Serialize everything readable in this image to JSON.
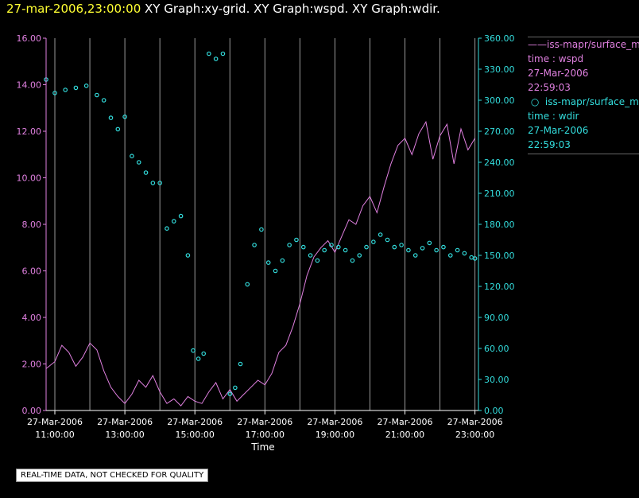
{
  "header": {
    "date": "27-mar-2006,23:00:00",
    "title": "XY Graph:xy-grid.  XY Graph:wspd.  XY Graph:wdir."
  },
  "legend": {
    "wspd": {
      "name": "iss-mapr/surface_met",
      "var": "time : wspd",
      "date": "27-Mar-2006",
      "time": "22:59:03",
      "color": "#e080e0"
    },
    "wdir": {
      "name": "iss-mapr/surface_met",
      "var": "time : wdir",
      "date": "27-Mar-2006",
      "time": "22:59:03",
      "color": "#33dddd"
    }
  },
  "quality_note": "REAL-TIME DATA, NOT CHECKED FOR QUALITY",
  "chart_data": {
    "type": "line",
    "xlabel": "Time",
    "xlim_hours": [
      10.75,
      23.1
    ],
    "x_ticks": [
      {
        "hour": 11,
        "date": "27-Mar-2006",
        "time": "11:00:00"
      },
      {
        "hour": 13,
        "date": "27-Mar-2006",
        "time": "13:00:00"
      },
      {
        "hour": 15,
        "date": "27-Mar-2006",
        "time": "15:00:00"
      },
      {
        "hour": 17,
        "date": "27-Mar-2006",
        "time": "17:00:00"
      },
      {
        "hour": 19,
        "date": "27-Mar-2006",
        "time": "19:00:00"
      },
      {
        "hour": 21,
        "date": "27-Mar-2006",
        "time": "21:00:00"
      },
      {
        "hour": 23,
        "date": "27-Mar-2006",
        "time": "23:00:00"
      }
    ],
    "gridlines_hours": [
      12,
      14,
      16,
      18,
      20,
      22
    ],
    "left_axis": {
      "ylim": [
        0,
        16
      ],
      "ticks": [
        "0.00",
        "2.00",
        "4.00",
        "6.00",
        "8.00",
        "10.00",
        "12.00",
        "14.00",
        "16.00"
      ]
    },
    "right_axis": {
      "ylim": [
        0,
        360
      ],
      "ticks": [
        "0.00",
        "30.00",
        "60.00",
        "90.00",
        "120.00",
        "150.00",
        "180.00",
        "210.00",
        "240.00",
        "270.00",
        "300.00",
        "330.00",
        "360.00"
      ]
    },
    "series": [
      {
        "name": "wspd",
        "axis": "left",
        "style": "line",
        "x": [
          10.75,
          11.0,
          11.2,
          11.4,
          11.6,
          11.8,
          12.0,
          12.2,
          12.4,
          12.6,
          12.8,
          13.0,
          13.2,
          13.4,
          13.6,
          13.8,
          14.0,
          14.2,
          14.4,
          14.6,
          14.8,
          15.0,
          15.2,
          15.4,
          15.6,
          15.8,
          16.0,
          16.2,
          16.4,
          16.6,
          16.8,
          17.0,
          17.2,
          17.4,
          17.6,
          17.8,
          18.0,
          18.2,
          18.4,
          18.6,
          18.8,
          19.0,
          19.2,
          19.4,
          19.6,
          19.8,
          20.0,
          20.2,
          20.4,
          20.6,
          20.8,
          21.0,
          21.2,
          21.4,
          21.6,
          21.8,
          22.0,
          22.2,
          22.4,
          22.6,
          22.8,
          23.0
        ],
        "y": [
          1.8,
          2.1,
          2.8,
          2.5,
          1.9,
          2.3,
          2.9,
          2.6,
          1.7,
          1.0,
          0.6,
          0.3,
          0.7,
          1.3,
          1.0,
          1.5,
          0.8,
          0.3,
          0.5,
          0.2,
          0.6,
          0.4,
          0.3,
          0.8,
          1.2,
          0.5,
          0.9,
          0.4,
          0.7,
          1.0,
          1.3,
          1.1,
          1.6,
          2.5,
          2.8,
          3.6,
          4.6,
          5.8,
          6.6,
          7.0,
          7.3,
          6.8,
          7.5,
          8.2,
          8.0,
          8.8,
          9.2,
          8.5,
          9.6,
          10.6,
          11.4,
          11.7,
          11.0,
          11.9,
          12.4,
          10.8,
          11.8,
          12.3,
          10.6,
          12.1,
          11.2,
          11.7
        ],
        "color": "#e080e0"
      },
      {
        "name": "wdir",
        "axis": "right",
        "style": "points",
        "x": [
          10.75,
          11.0,
          11.3,
          11.6,
          11.9,
          12.2,
          12.4,
          12.6,
          12.8,
          13.0,
          13.2,
          13.4,
          13.6,
          13.8,
          14.0,
          14.2,
          14.4,
          14.6,
          14.8,
          14.95,
          15.1,
          15.25,
          15.4,
          15.6,
          15.8,
          16.0,
          16.15,
          16.3,
          16.5,
          16.7,
          16.9,
          17.1,
          17.3,
          17.5,
          17.7,
          17.9,
          18.1,
          18.3,
          18.5,
          18.7,
          18.9,
          19.1,
          19.3,
          19.5,
          19.7,
          19.9,
          20.1,
          20.3,
          20.5,
          20.7,
          20.9,
          21.1,
          21.3,
          21.5,
          21.7,
          21.9,
          22.1,
          22.3,
          22.5,
          22.7,
          22.9,
          23.0
        ],
        "y": [
          320,
          307,
          310,
          312,
          314,
          305,
          300,
          283,
          272,
          284,
          246,
          240,
          230,
          220,
          220,
          176,
          183,
          188,
          150,
          58,
          50,
          55,
          345,
          340,
          345,
          16,
          22,
          45,
          122,
          160,
          175,
          143,
          135,
          145,
          160,
          165,
          158,
          150,
          145,
          155,
          160,
          158,
          155,
          145,
          150,
          158,
          163,
          170,
          165,
          158,
          160,
          155,
          150,
          157,
          162,
          155,
          158,
          150,
          155,
          152,
          148,
          147
        ],
        "color": "#33dddd"
      }
    ]
  }
}
